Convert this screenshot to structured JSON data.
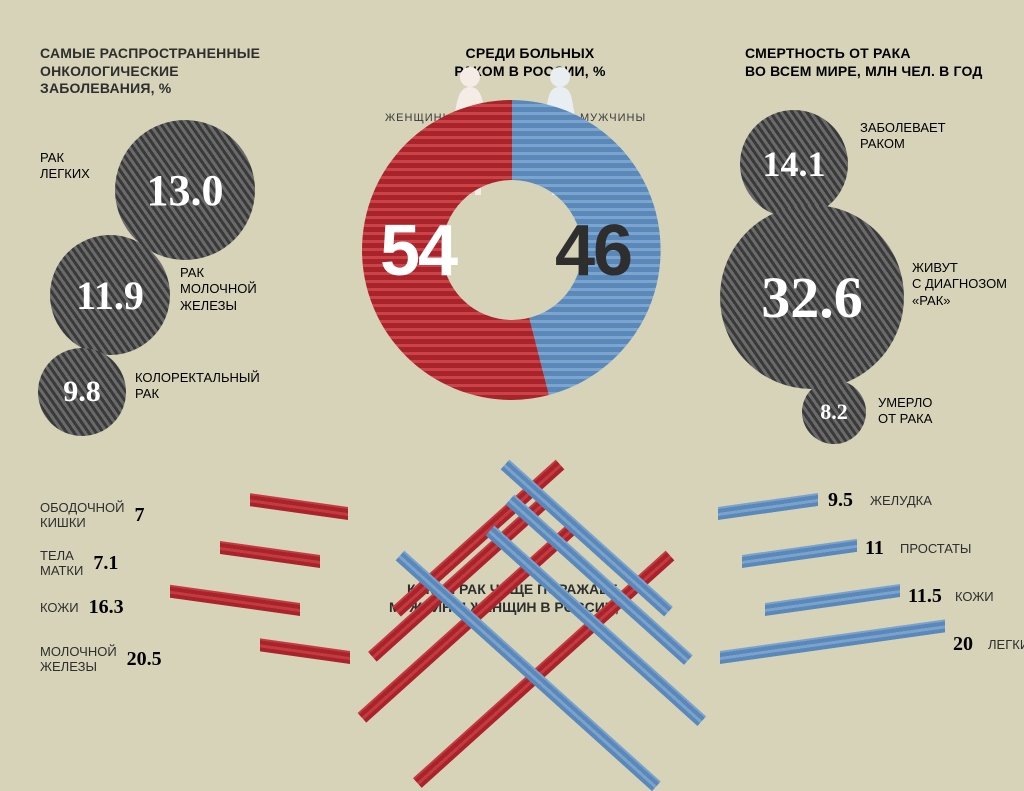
{
  "colors": {
    "bg": "#d6d3b9",
    "text": "#2e2e2e",
    "bubble_dark": "#3a3a3a",
    "bubble_light_text": "#ffffff",
    "red": "#a8232a",
    "red_light": "#c33b41",
    "blue": "#5a88b8",
    "blue_light": "#7aa2cc",
    "figure_red": "#f4ece5",
    "figure_blue": "#e9eef3"
  },
  "left_panel": {
    "title": "САМЫЕ РАСПРОСТРАНЕННЫЕ\nОНКОЛОГИЧЕСКИЕ\nЗАБОЛЕВАНИЯ, %",
    "bubbles": [
      {
        "value": "13.0",
        "label": "РАК\nЛЕГКИХ",
        "diameter": 140,
        "font": 44
      },
      {
        "value": "11.9",
        "label": "РАК\nМОЛОЧНОЙ\nЖЕЛЕЗЫ",
        "diameter": 120,
        "font": 40
      },
      {
        "value": "9.8",
        "label": "КОЛОРЕКТАЛЬНЫЙ\nРАК",
        "diameter": 88,
        "font": 30
      }
    ]
  },
  "center_panel": {
    "title": "СРЕДИ БОЛЬНЫХ\nРАКОМ В РОССИИ, %",
    "women_label": "ЖЕНЩИНЫ",
    "men_label": "МУЖЧИНЫ",
    "women_pct": "54",
    "men_pct": "46",
    "donut": {
      "outer_r": 150,
      "inner_r": 70
    }
  },
  "right_panel": {
    "title": "СМЕРТНОСТЬ ОТ РАКА\nВО ВСЕМ МИРЕ, МЛН ЧЕЛ. В ГОД",
    "bubbles": [
      {
        "value": "14.1",
        "label": "ЗАБОЛЕВАЕТ\nРАКОМ",
        "diameter": 108,
        "font": 36
      },
      {
        "value": "32.6",
        "label": "ЖИВУТ\nС ДИАГНОЗОМ\n«РАК»",
        "diameter": 184,
        "font": 58
      },
      {
        "value": "8.2",
        "label": "УМЕРЛО\nОТ РАКА",
        "diameter": 64,
        "font": 22
      }
    ]
  },
  "bottom_panel": {
    "title": "КАКОЙ РАК ЧАЩЕ ПОРАЖАЕТ\nМУЖЧИН И ЖЕНЩИН В РОССИИ, %",
    "women": [
      {
        "label": "ОБОДОЧНОЙ КИШКИ",
        "value": "7",
        "bar_len": 98
      },
      {
        "label": "ТЕЛА МАТКИ",
        "value": "7.1",
        "bar_len": 100
      },
      {
        "label": "КОЖИ",
        "value": "16.3",
        "bar_len": 228
      },
      {
        "label": "МОЛОЧНОЙ ЖЕЛЕЗЫ",
        "value": "20.5",
        "bar_len": 287
      }
    ],
    "men": [
      {
        "label": "ЖЕЛУДКА",
        "value": "9.5",
        "bar_len": 133
      },
      {
        "label": "ПРОСТАТЫ",
        "value": "11",
        "bar_len": 154
      },
      {
        "label": "КОЖИ",
        "value": "11.5",
        "bar_len": 161
      },
      {
        "label": "ЛЕГКИХ",
        "value": "20",
        "bar_len": 280
      }
    ]
  }
}
